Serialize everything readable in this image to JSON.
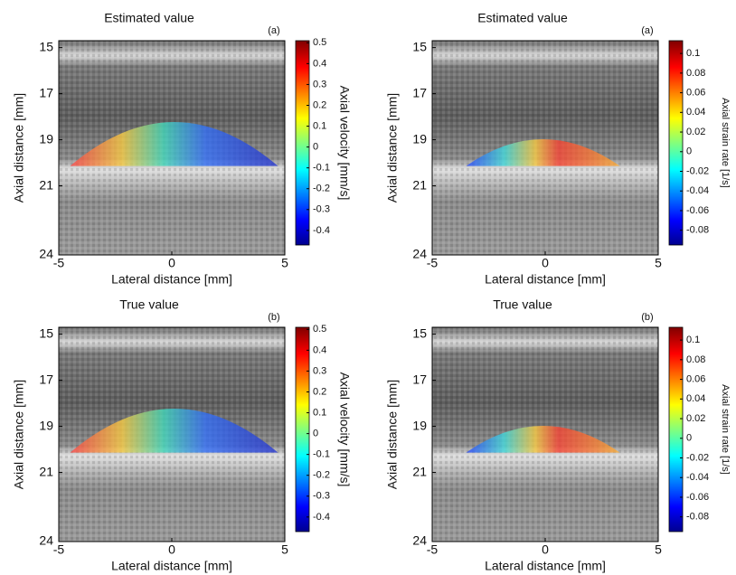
{
  "chart_data": [
    {
      "type": "image",
      "title": "Estimated value",
      "panel_label": "(a)",
      "xlabel": "Lateral distance [mm]",
      "ylabel": "Axial distance [mm]",
      "xlim": [
        -5,
        5
      ],
      "xticks": [
        -5,
        0,
        5
      ],
      "ylim": [
        24,
        14.7
      ],
      "yticks": [
        15,
        17,
        19,
        21,
        24
      ],
      "colorbar_label": "Axial velocity [mm/s]",
      "clim": [
        -0.47,
        0.51
      ],
      "cticks": [
        0.5,
        0.4,
        0.3,
        0.2,
        0.1,
        0,
        -0.1,
        -0.2,
        -0.3,
        -0.4
      ],
      "colormap": "jet"
    },
    {
      "type": "image",
      "title": "Estimated value",
      "panel_label": "(a)",
      "xlabel": "Lateral distance [mm]",
      "ylabel": "Axial distance [mm]",
      "xlim": [
        -5,
        5
      ],
      "xticks": [
        -5,
        0,
        5
      ],
      "ylim": [
        24,
        14.7
      ],
      "yticks": [
        15,
        17,
        19,
        21,
        24
      ],
      "colorbar_label": "Axial strain rate [1/s]",
      "clim": [
        -0.095,
        0.113
      ],
      "cticks": [
        0.1,
        0.08,
        0.06,
        0.04,
        0.02,
        0,
        -0.02,
        -0.04,
        -0.06,
        -0.08
      ],
      "colormap": "jet"
    },
    {
      "type": "image",
      "title": "True value",
      "panel_label": "(b)",
      "xlabel": "Lateral distance [mm]",
      "ylabel": "Axial distance [mm]",
      "xlim": [
        -5,
        5
      ],
      "xticks": [
        -5,
        0,
        5
      ],
      "ylim": [
        24,
        14.7
      ],
      "yticks": [
        15,
        17,
        19,
        21,
        24
      ],
      "colorbar_label": "Axial velocity [mm/s]",
      "clim": [
        -0.47,
        0.51
      ],
      "cticks": [
        0.5,
        0.4,
        0.3,
        0.2,
        0.1,
        0,
        -0.1,
        -0.2,
        -0.3,
        -0.4
      ],
      "colormap": "jet"
    },
    {
      "type": "image",
      "title": "True value",
      "panel_label": "(b)",
      "xlabel": "Lateral distance [mm]",
      "ylabel": "Axial distance [mm]",
      "xlim": [
        -5,
        5
      ],
      "xticks": [
        -5,
        0,
        5
      ],
      "ylim": [
        24,
        14.7
      ],
      "yticks": [
        15,
        17,
        19,
        21,
        24
      ],
      "colorbar_label": "Axial strain rate [1/s]",
      "clim": [
        -0.095,
        0.113
      ],
      "cticks": [
        0.1,
        0.08,
        0.06,
        0.04,
        0.02,
        0,
        -0.02,
        -0.04,
        -0.06,
        -0.08
      ],
      "colormap": "jet"
    }
  ]
}
